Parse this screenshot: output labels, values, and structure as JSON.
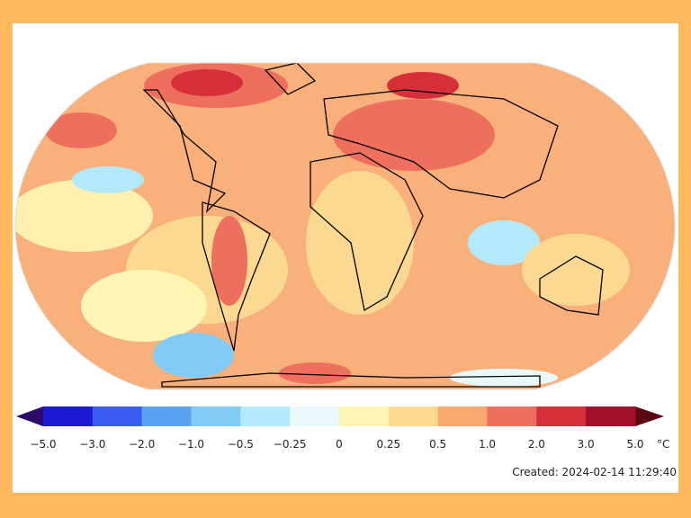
{
  "colorbar": {
    "ticks": [
      "−5.0",
      "−3.0",
      "−2.0",
      "−1.0",
      "−0.5",
      "−0.25",
      "0",
      "0.25",
      "0.5",
      "1.0",
      "2.0",
      "3.0",
      "5.0"
    ],
    "unit": "°C",
    "under_color": "#2b0a6b",
    "over_color": "#5c0612",
    "colors": [
      "#1c1ad2",
      "#3b5cf0",
      "#5aa2f0",
      "#82cbf6",
      "#b2e9fb",
      "#e9f8fb",
      "#fff6b6",
      "#fcd991",
      "#f8a96f",
      "#ef6f5e",
      "#d62f3a",
      "#a0102b"
    ]
  },
  "footer": {
    "created": "Created: 2024-02-14  11:29:40"
  }
}
